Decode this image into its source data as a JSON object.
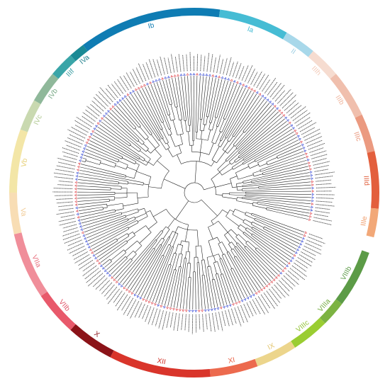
{
  "diagram": {
    "type": "circular-phylogenetic-tree",
    "clades": [
      {
        "name": "Ib",
        "color": "#0f7cb3",
        "label_color": "#0f7cb3",
        "start": -127,
        "end": -82
      },
      {
        "name": "Ia",
        "color": "#46bcd4",
        "label_color": "#46bcd4",
        "start": -82,
        "end": -60
      },
      {
        "name": "II",
        "color": "#a8d8ea",
        "label_color": "#9ecfe3",
        "start": -60,
        "end": -50
      },
      {
        "name": "IIIh",
        "color": "#f6dcd0",
        "label_color": "#f3c9b6",
        "start": -50,
        "end": -40
      },
      {
        "name": "IIIb",
        "color": "#f0bfad",
        "label_color": "#efb59d",
        "start": -40,
        "end": -25
      },
      {
        "name": "IIIc",
        "color": "#eb9a80",
        "label_color": "#e9957a",
        "start": -25,
        "end": -13
      },
      {
        "name": "IIId",
        "color": "#e35f3d",
        "label_color": "#e0603d",
        "start": -13,
        "end": 5
      },
      {
        "name": "IIIe",
        "color": "#f2a878",
        "label_color": "#f0a070",
        "start": 5,
        "end": 14
      },
      {
        "name": "VIIIb",
        "color": "#5c9b47",
        "label_color": "#5c9b47",
        "start": 19,
        "end": 37
      },
      {
        "name": "VIIIa",
        "color": "#7cb342",
        "label_color": "#6fa83b",
        "start": 37,
        "end": 45
      },
      {
        "name": "VIIIc",
        "color": "#9acd32",
        "label_color": "#8fc02e",
        "start": 45,
        "end": 57
      },
      {
        "name": "IX",
        "color": "#ecd58c",
        "label_color": "#e3c56e",
        "start": 57,
        "end": 70
      },
      {
        "name": "XI",
        "color": "#ec6a4e",
        "label_color": "#e95e42",
        "start": 70,
        "end": 85
      },
      {
        "name": "XII",
        "color": "#d9352b",
        "label_color": "#d03026",
        "start": 85,
        "end": 117
      },
      {
        "name": "X",
        "color": "#8b1318",
        "label_color": "#8b1318",
        "start": 117,
        "end": 132
      },
      {
        "name": "VIIb",
        "color": "#e8596b",
        "label_color": "#e05266",
        "start": 132,
        "end": 146
      },
      {
        "name": "VIIa",
        "color": "#f08e9a",
        "label_color": "#e7707e",
        "start": 146,
        "end": 167
      },
      {
        "name": "Va",
        "color": "#f8ddb4",
        "label_color": "#f0c890",
        "start": 167,
        "end": 180
      },
      {
        "name": "Vb",
        "color": "#f3e6a7",
        "label_color": "#e6cf75",
        "start": 180,
        "end": 200
      },
      {
        "name": "IVc",
        "color": "#c9d9b0",
        "label_color": "#b0c890",
        "start": 200,
        "end": 210
      },
      {
        "name": "IVb",
        "color": "#8fb89a",
        "label_color": "#7aaa88",
        "start": 210,
        "end": 220
      },
      {
        "name": "IIIf",
        "color": "#3aa5a8",
        "label_color": "#3a9ea3",
        "start": 220,
        "end": 228
      },
      {
        "name": "IVa",
        "color": "#1a8a95",
        "label_color": "#1a7d8a",
        "start": 228,
        "end": 233
      }
    ],
    "leaf_marker_colors": [
      "#e0484e",
      "#3a4dd6"
    ]
  }
}
